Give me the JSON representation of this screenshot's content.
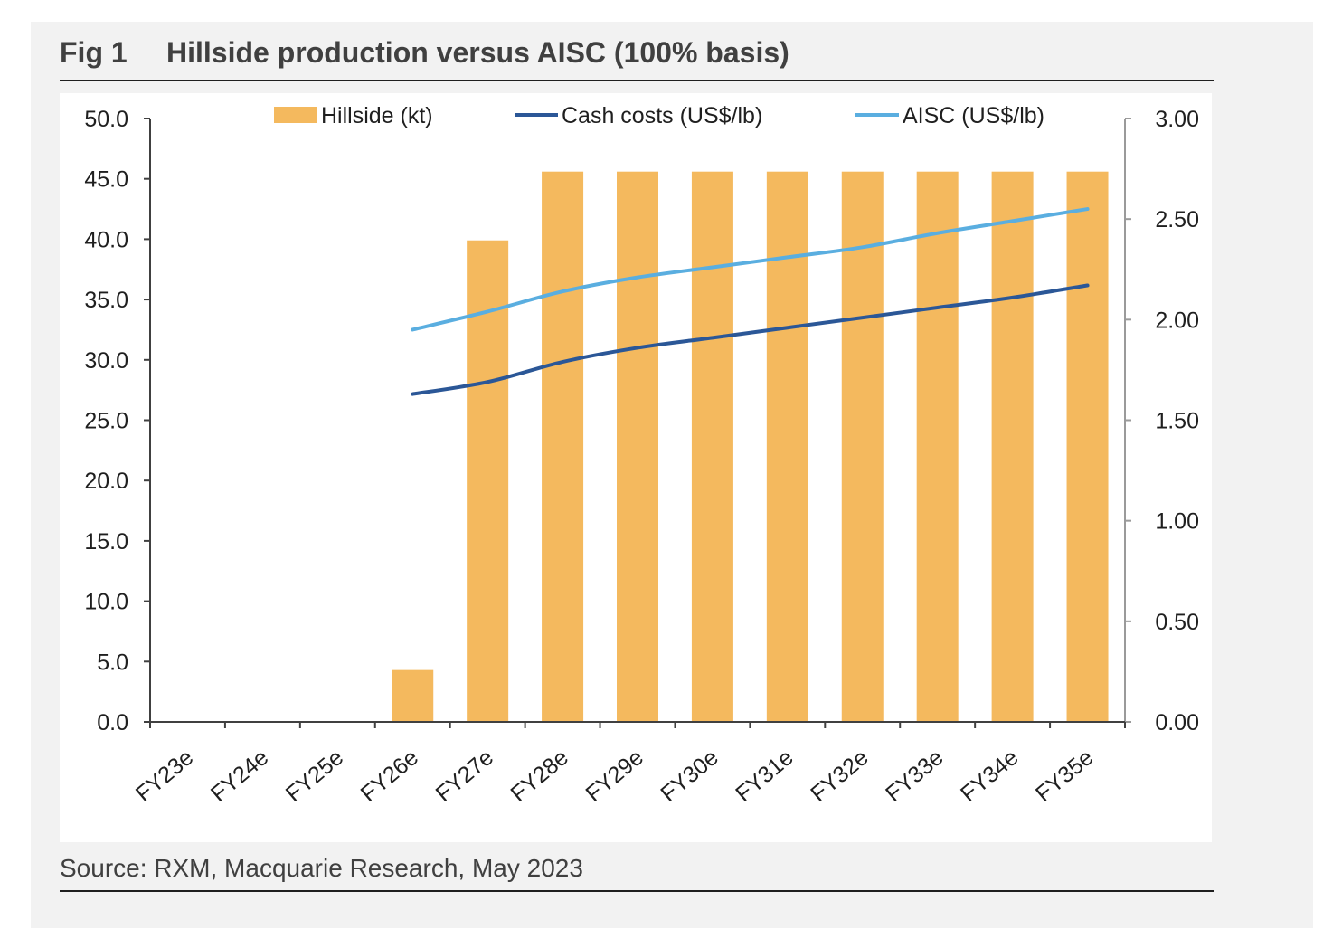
{
  "figure": {
    "number": "Fig 1",
    "title": "Hillside production versus AISC (100% basis)",
    "source": "Source: RXM, Macquarie Research, May 2023"
  },
  "chart_data": {
    "type": "bar",
    "categories": [
      "FY23e",
      "FY24e",
      "FY25e",
      "FY26e",
      "FY27e",
      "FY28e",
      "FY29e",
      "FY30e",
      "FY31e",
      "FY32e",
      "FY33e",
      "FY34e",
      "FY35e"
    ],
    "series": [
      {
        "name": "Hillside (kt)",
        "type": "bar",
        "axis": "left",
        "color": "#f4b95e",
        "values": [
          0,
          0,
          0,
          4.3,
          39.9,
          45.6,
          45.6,
          45.6,
          45.6,
          45.6,
          45.6,
          45.6,
          45.6
        ]
      },
      {
        "name": "Cash costs (US$/lb)",
        "type": "line",
        "axis": "right",
        "color": "#2b5797",
        "values": [
          null,
          null,
          null,
          1.63,
          1.69,
          1.79,
          1.86,
          1.91,
          1.96,
          2.01,
          2.06,
          2.11,
          2.17
        ]
      },
      {
        "name": "AISC (US$/lb)",
        "type": "line",
        "axis": "right",
        "color": "#5aaee0",
        "values": [
          null,
          null,
          null,
          1.95,
          2.04,
          2.14,
          2.21,
          2.26,
          2.31,
          2.36,
          2.43,
          2.49,
          2.55
        ]
      }
    ],
    "y_left": {
      "min": 0,
      "max": 50,
      "ticks": [
        "0.0",
        "5.0",
        "10.0",
        "15.0",
        "20.0",
        "25.0",
        "30.0",
        "35.0",
        "40.0",
        "45.0",
        "50.0"
      ]
    },
    "y_right": {
      "min": 0,
      "max": 3,
      "ticks": [
        "0.00",
        "0.50",
        "1.00",
        "1.50",
        "2.00",
        "2.50",
        "3.00"
      ]
    },
    "legend_position": "top",
    "grid": false
  }
}
